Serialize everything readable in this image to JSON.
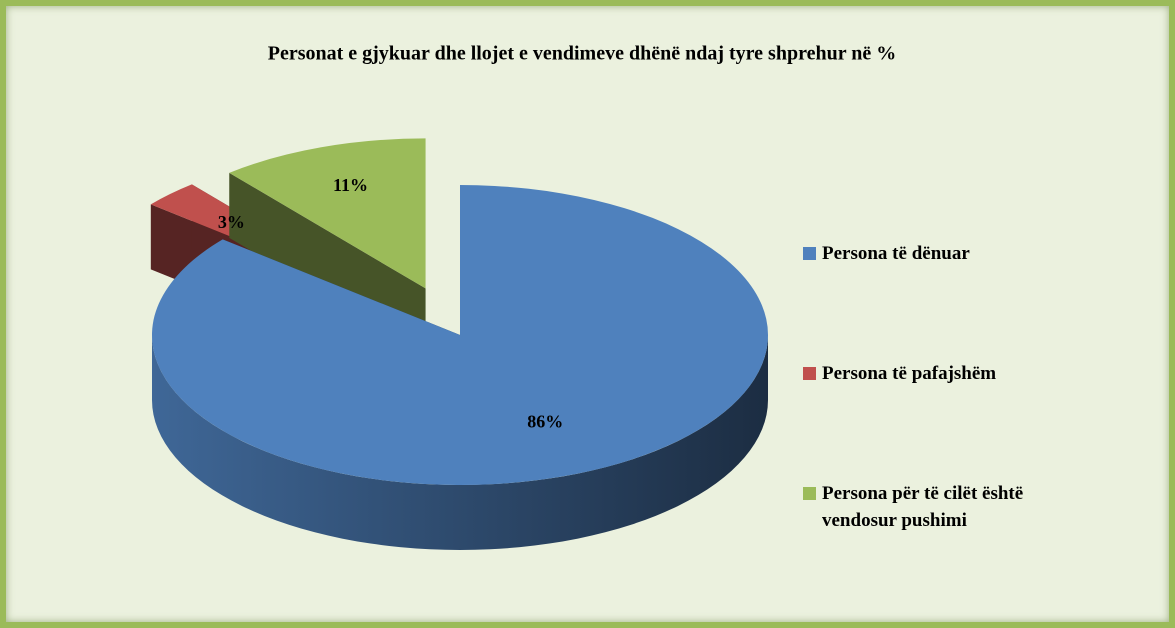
{
  "chart_data": {
    "type": "pie",
    "title": "Personat e gjykuar dhe llojet e vendimeve dhënë ndaj tyre shprehur në %",
    "categories": [
      "Persona të dënuar",
      "Persona të pafajshëm",
      "Persona për të cilët është vendosur pushimi"
    ],
    "values": [
      86,
      3,
      11
    ],
    "value_labels": [
      "86%",
      "3%",
      "11%"
    ],
    "colors": [
      "#4f81bd",
      "#c0504d",
      "#9bbb59"
    ],
    "exploded": [
      false,
      true,
      true
    ],
    "legend": "right"
  }
}
